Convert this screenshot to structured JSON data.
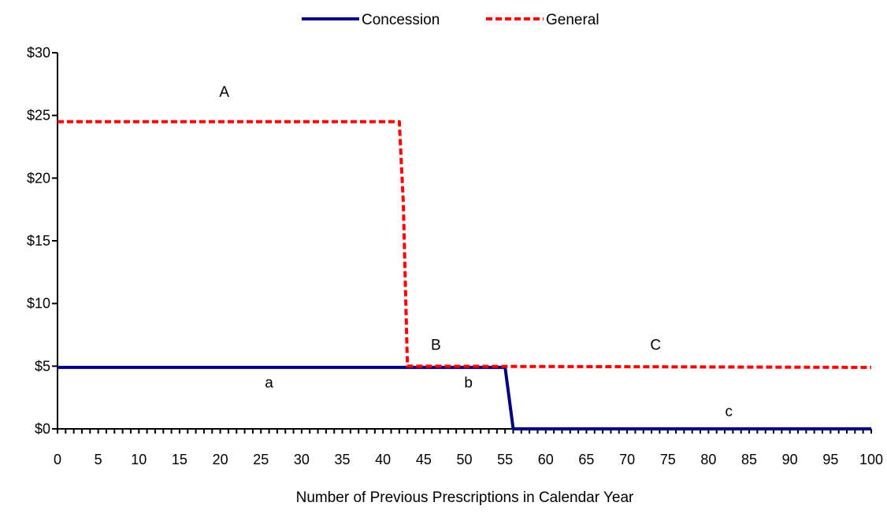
{
  "chart_data": {
    "type": "line",
    "title": "",
    "xlabel": "Number of Previous Prescriptions in Calendar Year",
    "ylabel": "",
    "xlim": [
      0,
      100
    ],
    "ylim": [
      0,
      30
    ],
    "x_ticks": [
      "0",
      "5",
      "10",
      "15",
      "20",
      "25",
      "30",
      "35",
      "40",
      "45",
      "50",
      "55",
      "60",
      "65",
      "70",
      "75",
      "80",
      "85",
      "90",
      "95",
      "100"
    ],
    "y_ticks": [
      "$0",
      "$5",
      "$10",
      "$15",
      "$20",
      "$25",
      "$30"
    ],
    "y_tick_values": [
      0,
      5,
      10,
      15,
      20,
      25,
      30
    ],
    "x_tick_values": [
      0,
      5,
      10,
      15,
      20,
      25,
      30,
      35,
      40,
      45,
      50,
      55,
      60,
      65,
      70,
      75,
      80,
      85,
      90,
      95,
      100
    ],
    "grid": false,
    "legend_position": "top-center",
    "series": [
      {
        "name": "Concession",
        "color": "#000080",
        "style": "solid",
        "points": [
          [
            0,
            4.9
          ],
          [
            55,
            4.9
          ],
          [
            56,
            0
          ],
          [
            100,
            0
          ]
        ]
      },
      {
        "name": "General",
        "color": "#ff0000",
        "style": "dashed",
        "points": [
          [
            0,
            24.5
          ],
          [
            42,
            24.5
          ],
          [
            42.5,
            18
          ],
          [
            43,
            5
          ],
          [
            100,
            4.9
          ]
        ]
      }
    ],
    "annotations": [
      {
        "text": "A",
        "x": 20.5,
        "y": 26.5
      },
      {
        "text": "B",
        "x": 46.5,
        "y": 6.3
      },
      {
        "text": "C",
        "x": 73.5,
        "y": 6.3
      },
      {
        "text": "a",
        "x": 26,
        "y": 3.3
      },
      {
        "text": "b",
        "x": 50.5,
        "y": 3.3
      },
      {
        "text": "c",
        "x": 82.5,
        "y": 1.0
      }
    ]
  }
}
